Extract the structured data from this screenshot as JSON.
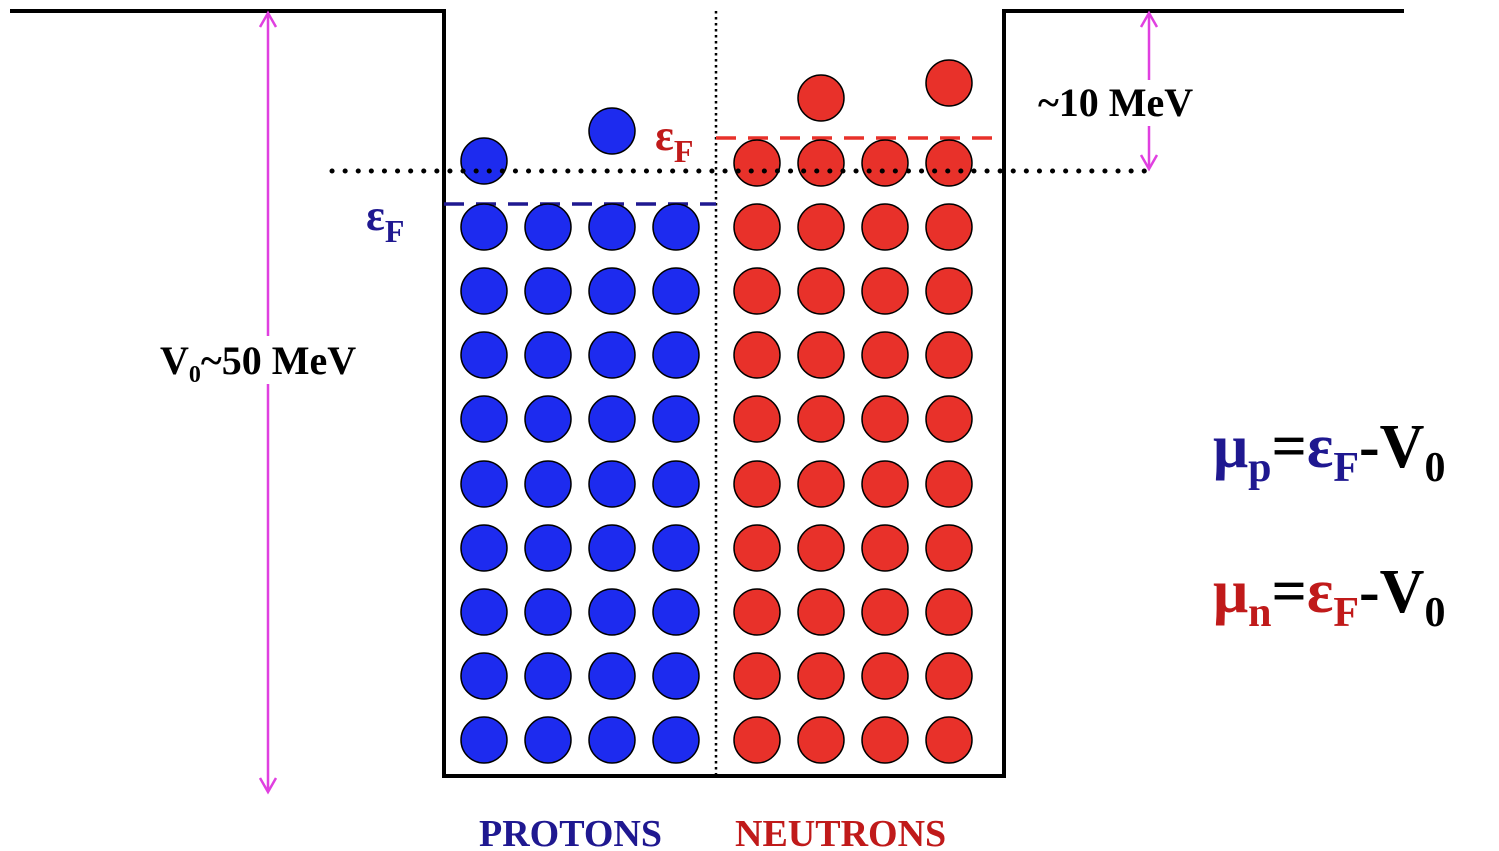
{
  "labels": {
    "v0_main": "V",
    "v0_sub": "0",
    "v0_rest": "~50 MeV",
    "gap": "~10 MeV",
    "protons": "PROTONS",
    "neutrons": "NEUTRONS",
    "eps": "ε",
    "eps_sub": "F"
  },
  "equations": {
    "proton": {
      "mu": "μ",
      "sub": "p",
      "eq": "=",
      "eps": "ε",
      "eps_sub": "F",
      "minus": "-V",
      "v_sub": "0"
    },
    "neutron": {
      "mu": "μ",
      "sub": "n",
      "eq": "=",
      "eps": "ε",
      "eps_sub": "F",
      "minus": "-V",
      "v_sub": "0"
    }
  },
  "colors": {
    "proton": "#1d2bef",
    "neutron": "#e8312a",
    "proton_text": "#1f1890",
    "neutron_text": "#c01a1a",
    "arrow": "#e040e0",
    "well": "#000000"
  },
  "particles": {
    "proton_filled_rows": 9,
    "proton_columns": 4,
    "proton_excited": 2,
    "neutron_filled_rows": 10,
    "neutron_columns": 4,
    "neutron_excited": 2
  }
}
